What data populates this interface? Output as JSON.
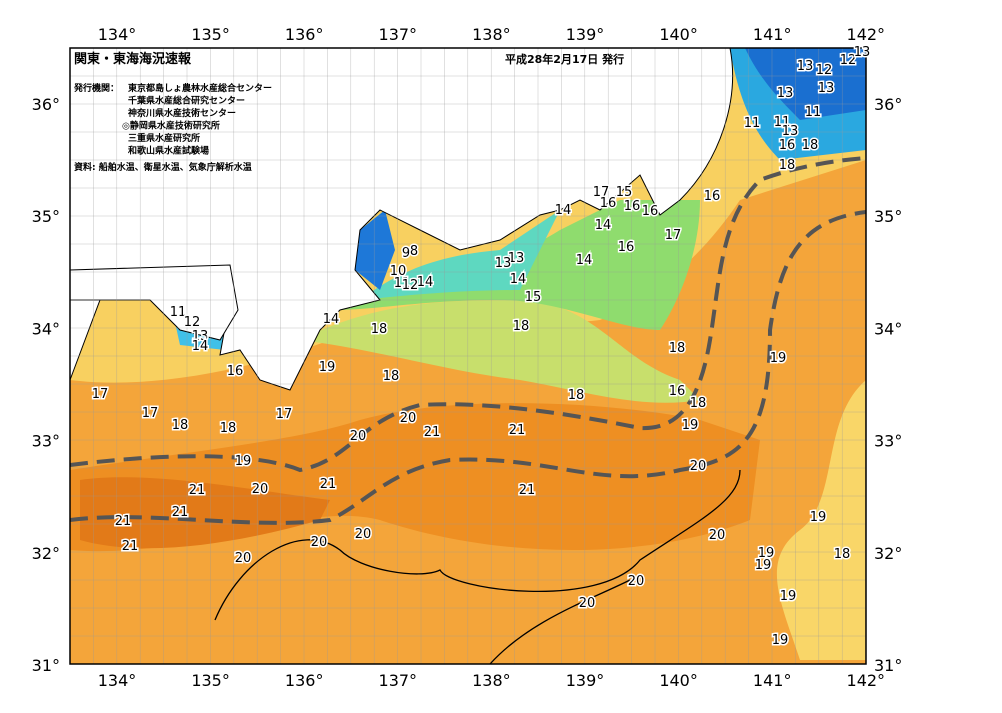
{
  "header": {
    "title": "関東・東海海況速報",
    "date": "平成28年2月17日 発行"
  },
  "issuers": {
    "label": "発行機関：",
    "items": [
      "東京都島しょ農林水産総合センター",
      "千葉県水産総合研究センター",
      "神奈川県水産技術センター",
      "◎静岡県水産技術研究所",
      "三重県水産研究所",
      "和歌山県水産試験場"
    ]
  },
  "source": "資料: 船舶水温、衛星水温、気象庁解析水温",
  "map": {
    "lon_ticks": [
      "134°",
      "135°",
      "136°",
      "137°",
      "138°",
      "139°",
      "140°",
      "141°",
      "142°"
    ],
    "lat_ticks": [
      "36°",
      "35°",
      "34°",
      "33°",
      "32°",
      "31°"
    ],
    "contour_labels": [
      13,
      12,
      12,
      13,
      13,
      13,
      11,
      11,
      11,
      13,
      16,
      18,
      18,
      16,
      17,
      15,
      16,
      16,
      16,
      14,
      14,
      17,
      16,
      9,
      8,
      10,
      11,
      12,
      14,
      13,
      13,
      14,
      14,
      15,
      11,
      12,
      13,
      14,
      14,
      18,
      18,
      18,
      19,
      19,
      18,
      16,
      17,
      16,
      18,
      17,
      18,
      18,
      17,
      18,
      20,
      21,
      21,
      20,
      19,
      19,
      20,
      20,
      21,
      21,
      21,
      21,
      21,
      20,
      19,
      21,
      20,
      20,
      19,
      19,
      18,
      20,
      20,
      19,
      20,
      19
    ]
  }
}
